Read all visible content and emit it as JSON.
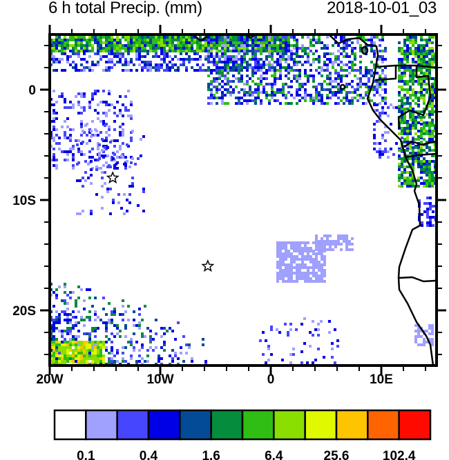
{
  "header": {
    "title": "6 h total Precip. (mm)",
    "valid_time": "2018-10-01_03"
  },
  "map": {
    "lon_range": [
      -20,
      15
    ],
    "lat_range": [
      -25,
      5
    ],
    "x_ticks": [
      {
        "value": -20,
        "label": "20W"
      },
      {
        "value": -10,
        "label": "10W"
      },
      {
        "value": 0,
        "label": "0"
      },
      {
        "value": 10,
        "label": "10E"
      }
    ],
    "y_ticks": [
      {
        "value": 0,
        "label": "0"
      },
      {
        "value": -10,
        "label": "10S"
      },
      {
        "value": -20,
        "label": "20S"
      }
    ],
    "markers": [
      {
        "type": "star",
        "lon": -14.3,
        "lat": -8
      },
      {
        "type": "star",
        "lon": -5.7,
        "lat": -16
      }
    ]
  },
  "colorbar": {
    "colors": [
      "#ffffff",
      "#a0a0ff",
      "#4646ff",
      "#0000e6",
      "#034b96",
      "#058c3c",
      "#30be14",
      "#8ade00",
      "#e0f800",
      "#ffc400",
      "#ff6400",
      "#ff0a00"
    ],
    "labels": [
      "0.1",
      "0.4",
      "1.6",
      "6.4",
      "25.6",
      "102.4"
    ]
  }
}
